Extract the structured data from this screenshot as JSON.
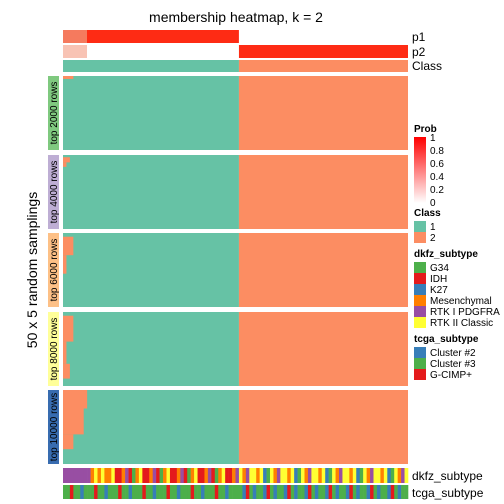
{
  "chart_data": {
    "type": "heatmap",
    "title": "membership heatmap, k = 2",
    "row_axis_label": "50 x 5 random samplings",
    "top_annotations": [
      "p1",
      "p2",
      "Class"
    ],
    "bottom_annotations": [
      "dkfz_subtype",
      "tcga_subtype"
    ],
    "row_groups": [
      {
        "label": "top 2000 rows",
        "color": "#7fc97f"
      },
      {
        "label": "top 4000 rows",
        "color": "#beaed4"
      },
      {
        "label": "top 6000 rows",
        "color": "#fdc086"
      },
      {
        "label": "top 8000 rows",
        "color": "#ffff99"
      },
      {
        "label": "top 10000 rows",
        "color": "#386cb0"
      }
    ],
    "class_colors": {
      "1": "#66c2a5",
      "2": "#fc8d62"
    },
    "n_samples": 100,
    "class1_count": 51,
    "prob_legend": {
      "title": "Prob",
      "ticks": [
        "1",
        "0.8",
        "0.6",
        "0.4",
        "0.2",
        "0"
      ],
      "low": "#ffffff",
      "high": "#ff0000"
    },
    "class_legend": {
      "title": "Class",
      "labels": [
        "1",
        "2"
      ]
    },
    "dkfz_legend": {
      "title": "dkfz_subtype",
      "items": [
        {
          "label": "G34",
          "color": "#4daf4a"
        },
        {
          "label": "IDH",
          "color": "#e41a1c"
        },
        {
          "label": "K27",
          "color": "#377eb8"
        },
        {
          "label": "Mesenchymal",
          "color": "#ff7f00"
        },
        {
          "label": "RTK I PDGFRA",
          "color": "#984ea3"
        },
        {
          "label": "RTK II Classic",
          "color": "#ffff33"
        }
      ]
    },
    "tcga_legend": {
      "title": "tcga_subtype",
      "items": [
        {
          "label": "Cluster #2",
          "color": "#377eb8"
        },
        {
          "label": "Cluster #3",
          "color": "#4daf4a"
        },
        {
          "label": "G-CIMP+",
          "color": "#e41a1c"
        }
      ]
    }
  }
}
